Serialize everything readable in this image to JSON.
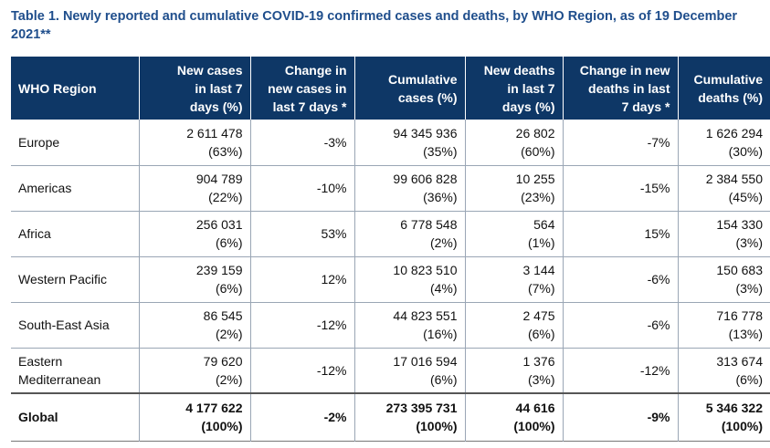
{
  "caption": "Table 1. Newly reported and cumulative COVID-19 confirmed cases and deaths, by WHO Region, as of 19 December 2021**",
  "headers": [
    [
      "WHO Region"
    ],
    [
      "New cases",
      "in last 7",
      "days (%)"
    ],
    [
      "Change in",
      "new cases in",
      "last 7 days *"
    ],
    [
      "Cumulative",
      "cases (%)"
    ],
    [
      "New deaths",
      "in last 7",
      "days (%)"
    ],
    [
      "Change in new",
      "deaths in last",
      "7 days *"
    ],
    [
      "Cumulative",
      "deaths (%)"
    ]
  ],
  "rows": [
    {
      "region": [
        "Europe"
      ],
      "new_cases": [
        "2 611 478",
        "(63%)"
      ],
      "change_cases": "-3%",
      "cum_cases": [
        "94 345 936",
        "(35%)"
      ],
      "new_deaths": [
        "26 802",
        "(60%)"
      ],
      "change_deaths": "-7%",
      "cum_deaths": [
        "1 626 294",
        "(30%)"
      ]
    },
    {
      "region": [
        "Americas"
      ],
      "new_cases": [
        "904 789",
        "(22%)"
      ],
      "change_cases": "-10%",
      "cum_cases": [
        "99 606 828",
        "(36%)"
      ],
      "new_deaths": [
        "10 255",
        "(23%)"
      ],
      "change_deaths": "-15%",
      "cum_deaths": [
        "2 384 550",
        "(45%)"
      ]
    },
    {
      "region": [
        "Africa"
      ],
      "new_cases": [
        "256 031",
        "(6%)"
      ],
      "change_cases": "53%",
      "cum_cases": [
        "6 778 548",
        "(2%)"
      ],
      "new_deaths": [
        "564",
        "(1%)"
      ],
      "change_deaths": "15%",
      "cum_deaths": [
        "154 330",
        "(3%)"
      ]
    },
    {
      "region": [
        "Western Pacific"
      ],
      "new_cases": [
        "239 159",
        "(6%)"
      ],
      "change_cases": "12%",
      "cum_cases": [
        "10 823 510",
        "(4%)"
      ],
      "new_deaths": [
        "3 144",
        "(7%)"
      ],
      "change_deaths": "-6%",
      "cum_deaths": [
        "150 683",
        "(3%)"
      ]
    },
    {
      "region": [
        "South-East Asia"
      ],
      "new_cases": [
        "86 545",
        "(2%)"
      ],
      "change_cases": "-12%",
      "cum_cases": [
        "44 823 551",
        "(16%)"
      ],
      "new_deaths": [
        "2 475",
        "(6%)"
      ],
      "change_deaths": "-6%",
      "cum_deaths": [
        "716 778",
        "(13%)"
      ]
    },
    {
      "region": [
        "Eastern",
        "Mediterranean"
      ],
      "new_cases": [
        "79 620",
        "(2%)"
      ],
      "change_cases": "-12%",
      "cum_cases": [
        "17 016 594",
        "(6%)"
      ],
      "new_deaths": [
        "1 376",
        "(3%)"
      ],
      "change_deaths": "-12%",
      "cum_deaths": [
        "313 674",
        "(6%)"
      ]
    }
  ],
  "global": {
    "region": [
      "Global"
    ],
    "new_cases": [
      "4 177 622",
      "(100%)"
    ],
    "change_cases": "-2%",
    "cum_cases": [
      "273 395 731",
      "(100%)"
    ],
    "new_deaths": [
      "44 616",
      "(100%)"
    ],
    "change_deaths": "-9%",
    "cum_deaths": [
      "5 346 322",
      "(100%)"
    ]
  },
  "colors": {
    "caption": "#1f4e8c",
    "header_bg": "#0e3766",
    "header_text": "#ffffff"
  }
}
